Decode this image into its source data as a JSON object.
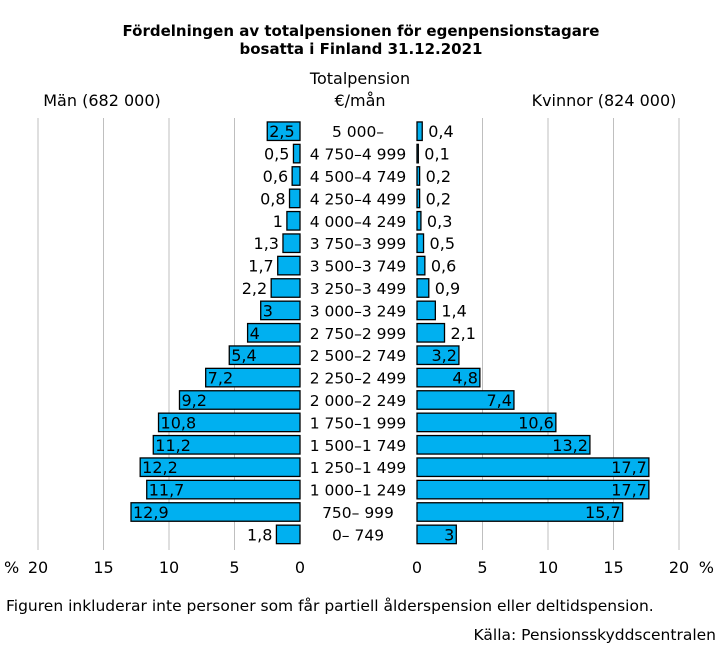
{
  "chart_data": {
    "type": "bar",
    "title_line1": "Fördelningen av totalpensionen för egenpensionstagare",
    "title_line2": "bosatta i Finland 31.12.2021",
    "center_header_line1": "Totalpension",
    "center_header_line2": "€/mån",
    "left_label": "Män (682 000)",
    "right_label": "Kvinnor (824 000)",
    "categories": [
      "5 000–",
      "4 750–4 999",
      "4 500–4 749",
      "4 250–4 499",
      "4 000–4 249",
      "3 750–3 999",
      "3 500–3 749",
      "3 250–3 499",
      "3 000–3 249",
      "2 750–2 999",
      "2 500–2 749",
      "2 250–2 499",
      "2 000–2 249",
      "1 750–1 999",
      "1 500–1 749",
      "1 250–1 499",
      "1 000–1 249",
      "750–   999",
      "0–   749"
    ],
    "series": [
      {
        "name": "Män (682 000)",
        "values": [
          2.5,
          0.5,
          0.6,
          0.8,
          1.0,
          1.3,
          1.7,
          2.2,
          3.0,
          4.0,
          5.4,
          7.2,
          9.2,
          10.8,
          11.2,
          12.2,
          11.7,
          12.9,
          1.8
        ]
      },
      {
        "name": "Kvinnor (824 000)",
        "values": [
          0.4,
          0.1,
          0.2,
          0.2,
          0.3,
          0.5,
          0.6,
          0.9,
          1.4,
          2.1,
          3.2,
          4.8,
          7.4,
          10.6,
          13.2,
          17.7,
          17.7,
          15.7,
          3.0
        ]
      }
    ],
    "xlim": [
      0,
      20
    ],
    "xticks": [
      0,
      5,
      10,
      15,
      20
    ],
    "unit_label": "%",
    "footnote": "Figuren inkluderar inte personer som får partiell ålderspension eller deltidspension.",
    "source": "Källa: Pensionsskyddscentralen",
    "bar_color": "#00b0f0",
    "bar_edge_color": "#000000",
    "grid_color": "#bfbfbf",
    "grid": true
  }
}
